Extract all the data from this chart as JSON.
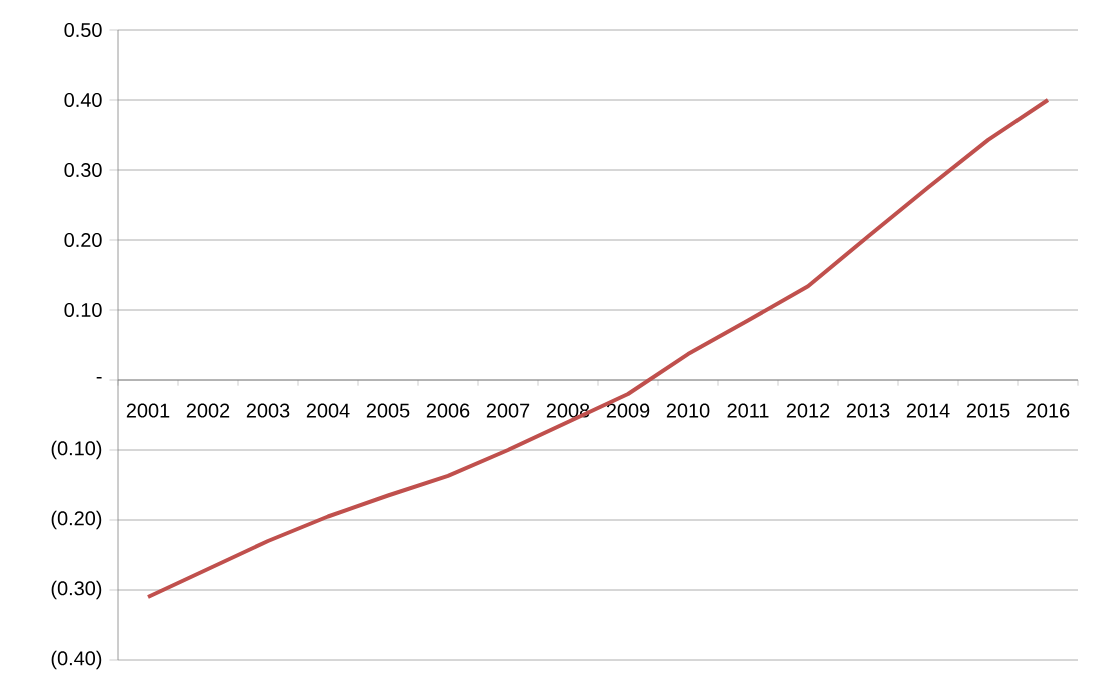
{
  "chart_data": {
    "type": "line",
    "categories": [
      "2001",
      "2002",
      "2003",
      "2004",
      "2005",
      "2006",
      "2007",
      "2008",
      "2009",
      "2010",
      "2011",
      "2012",
      "2013",
      "2014",
      "2015",
      "2016"
    ],
    "series": [
      {
        "color": "#c0504d",
        "values": [
          -0.31,
          -0.27,
          -0.23,
          -0.195,
          -0.165,
          -0.137,
          -0.1,
          -0.06,
          -0.02,
          0.037,
          0.085,
          0.134,
          0.205,
          0.275,
          0.343,
          0.4
        ]
      }
    ],
    "ylim": [
      -0.4,
      0.5
    ],
    "yticks": [
      {
        "value": -0.4,
        "label": "(0.40)"
      },
      {
        "value": -0.3,
        "label": "(0.30)"
      },
      {
        "value": -0.2,
        "label": "(0.20)"
      },
      {
        "value": -0.1,
        "label": "(0.10)"
      },
      {
        "value": 0,
        "label": "-"
      },
      {
        "value": 0.1,
        "label": "0.10"
      },
      {
        "value": 0.2,
        "label": "0.20"
      },
      {
        "value": 0.3,
        "label": "0.30"
      },
      {
        "value": 0.4,
        "label": "0.40"
      },
      {
        "value": 0.5,
        "label": "0.50"
      }
    ],
    "grid": "y",
    "marker": "none",
    "line_style": "solid"
  }
}
